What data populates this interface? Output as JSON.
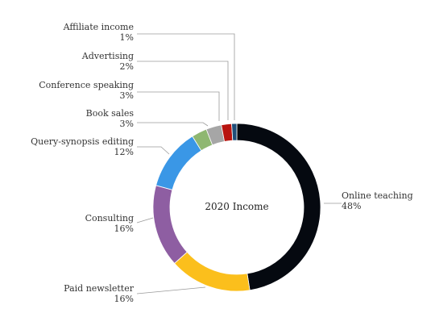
{
  "chart_data": {
    "type": "pie",
    "style": "donut",
    "center_label": "2020 Income",
    "slices": [
      {
        "label": "Online teaching",
        "value": 48,
        "value_label": "48%",
        "color": "#050910"
      },
      {
        "label": "Paid newsletter",
        "value": 16,
        "value_label": "16%",
        "color": "#fbbf1c"
      },
      {
        "label": "Consulting",
        "value": 16,
        "value_label": "16%",
        "color": "#8e5ea2"
      },
      {
        "label": "Query-synopsis editing",
        "value": 12,
        "value_label": "12%",
        "color": "#3a97e6"
      },
      {
        "label": "Book sales",
        "value": 3,
        "value_label": "3%",
        "color": "#8fb771"
      },
      {
        "label": "Conference speaking",
        "value": 3,
        "value_label": "3%",
        "color": "#a6a6a6"
      },
      {
        "label": "Advertising",
        "value": 2,
        "value_label": "2%",
        "color": "#b8140f"
      },
      {
        "label": "Affiliate income",
        "value": 1,
        "value_label": "1%",
        "color": "#1f4e79"
      }
    ]
  }
}
